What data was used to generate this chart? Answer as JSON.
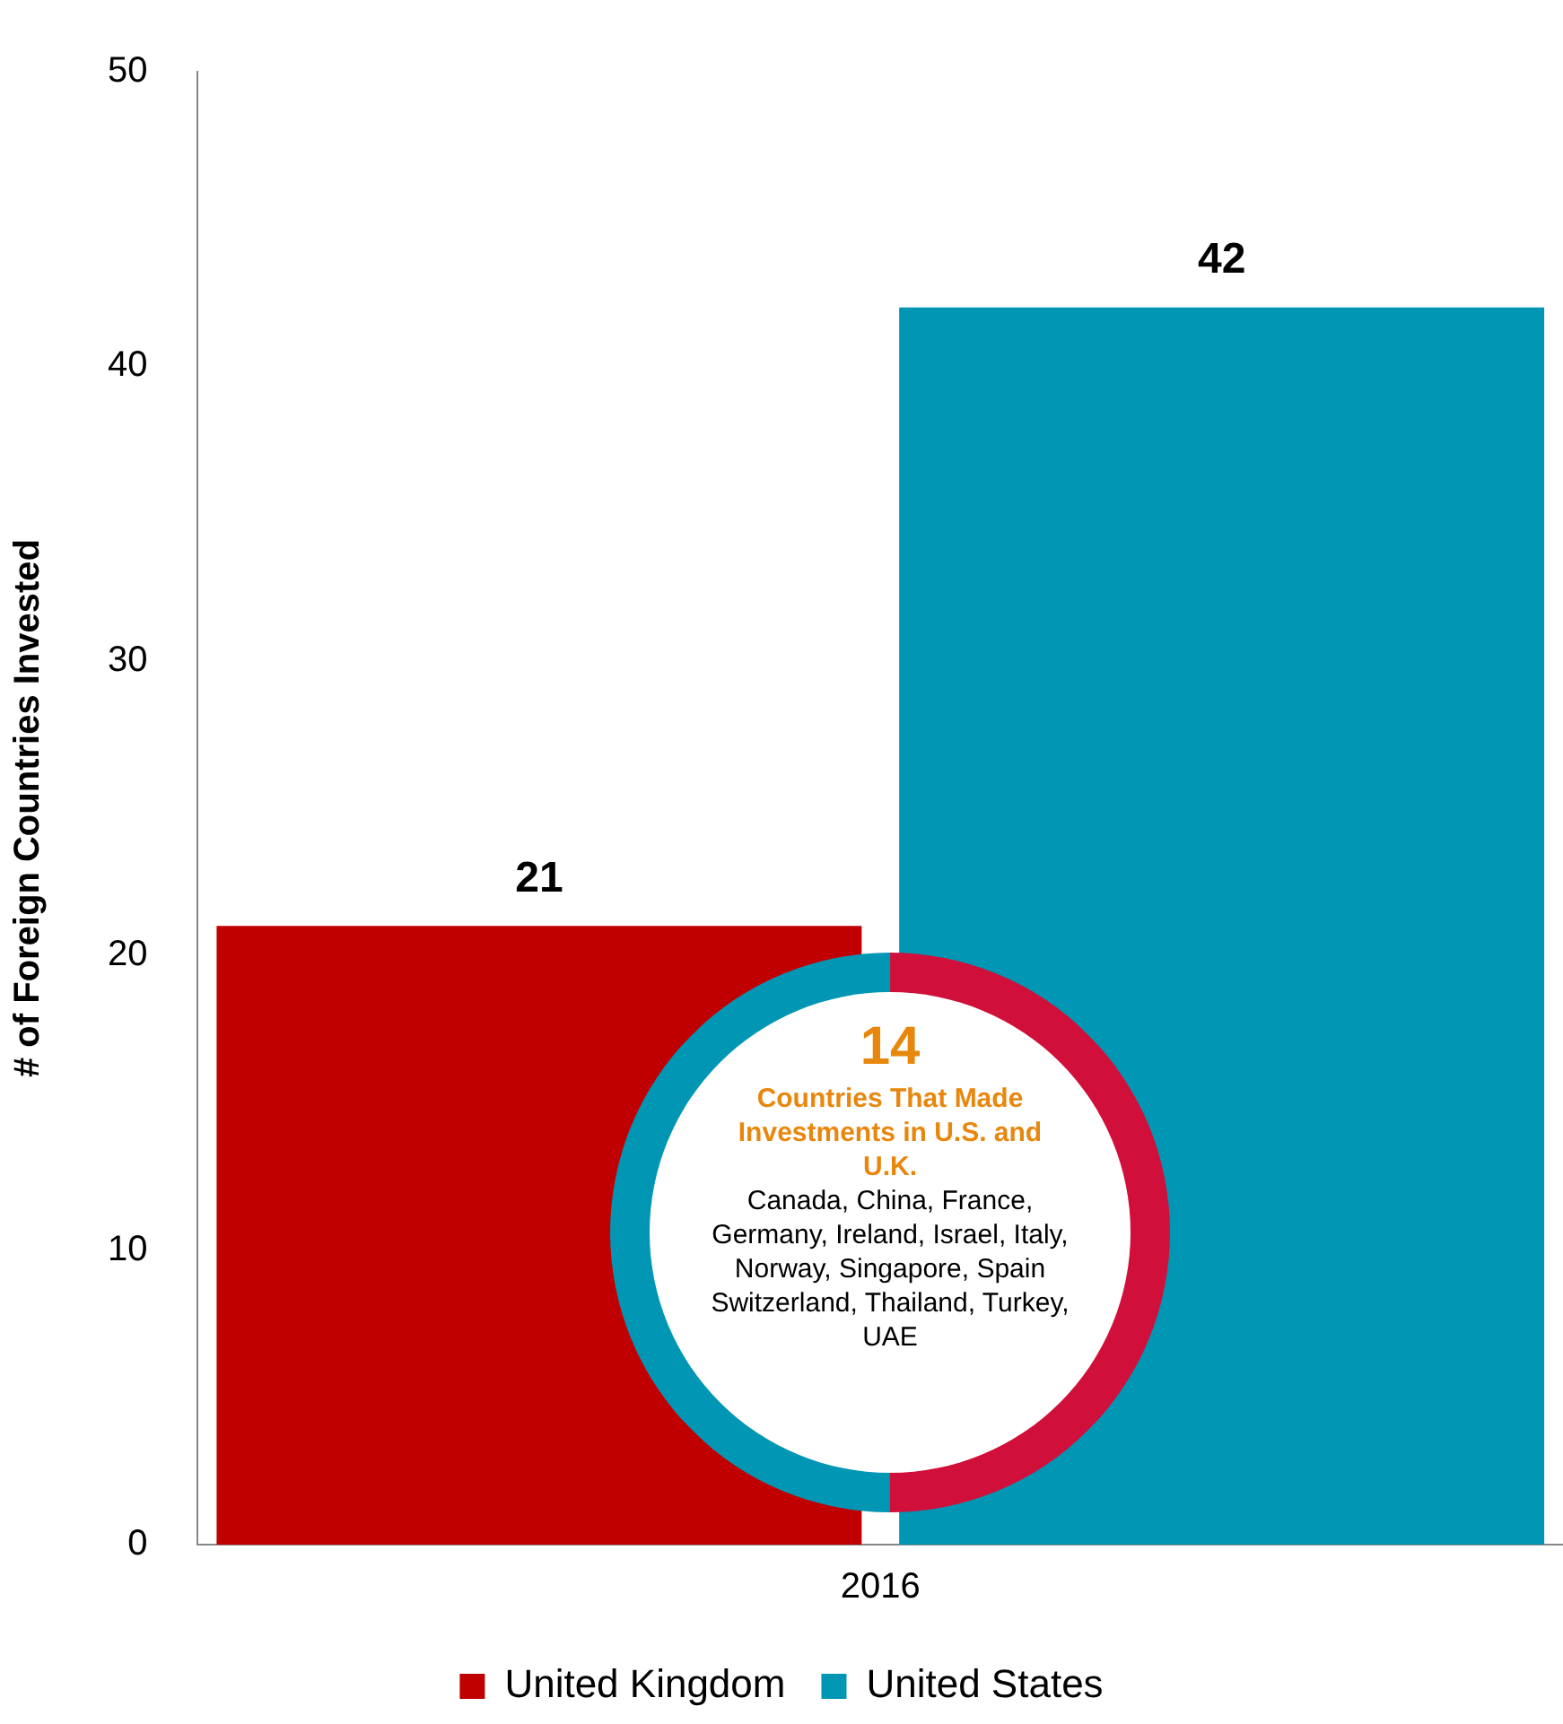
{
  "chart_data": {
    "type": "bar",
    "ylabel": "# of Foreign Countries Invested",
    "categories": [
      "2016"
    ],
    "series": [
      {
        "name": "United Kingdom",
        "color": "#c00000",
        "values": [
          21
        ]
      },
      {
        "name": "United States",
        "color": "#0096b4",
        "values": [
          42
        ]
      }
    ],
    "ylim": [
      0,
      50
    ],
    "yticks": [
      0,
      10,
      20,
      30,
      40,
      50
    ],
    "grid": false,
    "legend": "bottom",
    "data_labels": true,
    "annotations": [
      "14",
      "Countries That Made Investments in U.S. and U.K.",
      "Canada, China, France, Germany, Ireland, Israel, Italy, Norway, Singapore, Spain Switzerland, Thailand, Turkey, UAE"
    ]
  }
}
